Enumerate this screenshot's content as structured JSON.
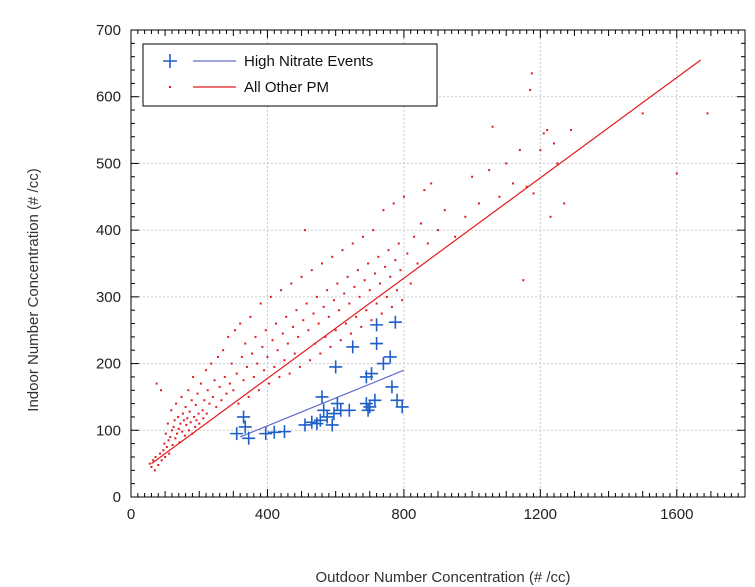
{
  "chart_data": {
    "type": "scatter",
    "xlabel": "Outdoor Number Concentration (# /cc)",
    "ylabel": "Indoor Number Concentration (# /cc)",
    "xlim": [
      0,
      1800
    ],
    "ylim": [
      0,
      700
    ],
    "x_ticks": [
      0,
      400,
      800,
      1200,
      1600
    ],
    "y_ticks": [
      0,
      100,
      200,
      300,
      400,
      500,
      600,
      700
    ],
    "grid": true,
    "legend_position": "top-left",
    "series": [
      {
        "name": "High Nitrate Events",
        "marker": "plus",
        "color": "#1f5fc8",
        "fit_color": "#6670cc",
        "fit_line": [
          [
            320,
            90
          ],
          [
            800,
            190
          ]
        ],
        "points": [
          [
            310,
            95
          ],
          [
            330,
            120
          ],
          [
            335,
            105
          ],
          [
            345,
            88
          ],
          [
            395,
            95
          ],
          [
            420,
            97
          ],
          [
            450,
            98
          ],
          [
            510,
            108
          ],
          [
            530,
            112
          ],
          [
            545,
            110
          ],
          [
            555,
            115
          ],
          [
            560,
            150
          ],
          [
            565,
            130
          ],
          [
            575,
            120
          ],
          [
            590,
            108
          ],
          [
            595,
            125
          ],
          [
            600,
            195
          ],
          [
            605,
            140
          ],
          [
            615,
            130
          ],
          [
            640,
            130
          ],
          [
            650,
            225
          ],
          [
            690,
            140
          ],
          [
            690,
            180
          ],
          [
            695,
            130
          ],
          [
            700,
            135
          ],
          [
            705,
            185
          ],
          [
            715,
            145
          ],
          [
            720,
            230
          ],
          [
            720,
            258
          ],
          [
            740,
            200
          ],
          [
            760,
            210
          ],
          [
            765,
            165
          ],
          [
            775,
            262
          ],
          [
            780,
            145
          ],
          [
            795,
            135
          ]
        ]
      },
      {
        "name": "All Other PM",
        "marker": "dot",
        "color": "#e31a1c",
        "fit_color": "#e31a1c",
        "fit_line": [
          [
            60,
            50
          ],
          [
            1670,
            655
          ]
        ],
        "points": [
          [
            55,
            50
          ],
          [
            60,
            45
          ],
          [
            65,
            55
          ],
          [
            70,
            40
          ],
          [
            72,
            60
          ],
          [
            75,
            170
          ],
          [
            80,
            48
          ],
          [
            85,
            65
          ],
          [
            88,
            160
          ],
          [
            90,
            55
          ],
          [
            95,
            70
          ],
          [
            98,
            80
          ],
          [
            100,
            60
          ],
          [
            102,
            95
          ],
          [
            105,
            75
          ],
          [
            108,
            110
          ],
          [
            110,
            85
          ],
          [
            112,
            65
          ],
          [
            115,
            90
          ],
          [
            118,
            130
          ],
          [
            120,
            100
          ],
          [
            122,
            78
          ],
          [
            125,
            105
          ],
          [
            128,
            115
          ],
          [
            130,
            88
          ],
          [
            132,
            140
          ],
          [
            135,
            95
          ],
          [
            138,
            120
          ],
          [
            140,
            102
          ],
          [
            142,
            82
          ],
          [
            145,
            110
          ],
          [
            148,
            150
          ],
          [
            150,
            98
          ],
          [
            152,
            125
          ],
          [
            155,
            115
          ],
          [
            158,
            92
          ],
          [
            160,
            135
          ],
          [
            162,
            108
          ],
          [
            165,
            118
          ],
          [
            168,
            160
          ],
          [
            170,
            100
          ],
          [
            172,
            128
          ],
          [
            175,
            112
          ],
          [
            178,
            145
          ],
          [
            180,
            95
          ],
          [
            182,
            180
          ],
          [
            185,
            120
          ],
          [
            188,
            105
          ],
          [
            190,
            138
          ],
          [
            192,
            115
          ],
          [
            195,
            155
          ],
          [
            198,
            125
          ],
          [
            200,
            110
          ],
          [
            205,
            170
          ],
          [
            210,
            130
          ],
          [
            212,
            118
          ],
          [
            215,
            145
          ],
          [
            220,
            190
          ],
          [
            222,
            125
          ],
          [
            225,
            160
          ],
          [
            230,
            140
          ],
          [
            235,
            200
          ],
          [
            240,
            150
          ],
          [
            245,
            175
          ],
          [
            250,
            135
          ],
          [
            255,
            210
          ],
          [
            260,
            165
          ],
          [
            265,
            145
          ],
          [
            270,
            220
          ],
          [
            275,
            180
          ],
          [
            280,
            155
          ],
          [
            285,
            240
          ],
          [
            290,
            170
          ],
          [
            295,
            200
          ],
          [
            300,
            160
          ],
          [
            305,
            250
          ],
          [
            310,
            185
          ],
          [
            315,
            140
          ],
          [
            320,
            260
          ],
          [
            325,
            210
          ],
          [
            330,
            175
          ],
          [
            335,
            230
          ],
          [
            340,
            195
          ],
          [
            345,
            150
          ],
          [
            350,
            270
          ],
          [
            355,
            215
          ],
          [
            360,
            180
          ],
          [
            365,
            240
          ],
          [
            370,
            200
          ],
          [
            375,
            160
          ],
          [
            380,
            290
          ],
          [
            385,
            225
          ],
          [
            390,
            190
          ],
          [
            395,
            250
          ],
          [
            400,
            210
          ],
          [
            405,
            170
          ],
          [
            410,
            300
          ],
          [
            415,
            235
          ],
          [
            420,
            195
          ],
          [
            425,
            260
          ],
          [
            430,
            220
          ],
          [
            435,
            180
          ],
          [
            440,
            310
          ],
          [
            445,
            245
          ],
          [
            450,
            205
          ],
          [
            455,
            270
          ],
          [
            460,
            230
          ],
          [
            465,
            185
          ],
          [
            470,
            320
          ],
          [
            475,
            255
          ],
          [
            480,
            215
          ],
          [
            485,
            280
          ],
          [
            490,
            240
          ],
          [
            495,
            195
          ],
          [
            500,
            330
          ],
          [
            505,
            265
          ],
          [
            510,
            400
          ],
          [
            515,
            290
          ],
          [
            520,
            250
          ],
          [
            525,
            205
          ],
          [
            530,
            340
          ],
          [
            535,
            275
          ],
          [
            540,
            230
          ],
          [
            545,
            300
          ],
          [
            550,
            260
          ],
          [
            555,
            215
          ],
          [
            560,
            350
          ],
          [
            565,
            285
          ],
          [
            570,
            240
          ],
          [
            575,
            310
          ],
          [
            580,
            270
          ],
          [
            585,
            225
          ],
          [
            590,
            360
          ],
          [
            595,
            295
          ],
          [
            600,
            250
          ],
          [
            605,
            320
          ],
          [
            610,
            280
          ],
          [
            615,
            235
          ],
          [
            620,
            370
          ],
          [
            625,
            305
          ],
          [
            630,
            260
          ],
          [
            635,
            330
          ],
          [
            640,
            290
          ],
          [
            645,
            245
          ],
          [
            650,
            380
          ],
          [
            655,
            315
          ],
          [
            660,
            270
          ],
          [
            665,
            340
          ],
          [
            670,
            300
          ],
          [
            675,
            255
          ],
          [
            680,
            390
          ],
          [
            685,
            325
          ],
          [
            690,
            280
          ],
          [
            695,
            350
          ],
          [
            700,
            310
          ],
          [
            705,
            265
          ],
          [
            710,
            400
          ],
          [
            715,
            335
          ],
          [
            720,
            290
          ],
          [
            725,
            360
          ],
          [
            730,
            320
          ],
          [
            735,
            275
          ],
          [
            740,
            430
          ],
          [
            745,
            345
          ],
          [
            750,
            300
          ],
          [
            755,
            370
          ],
          [
            760,
            330
          ],
          [
            765,
            285
          ],
          [
            770,
            440
          ],
          [
            775,
            355
          ],
          [
            780,
            310
          ],
          [
            785,
            380
          ],
          [
            790,
            340
          ],
          [
            795,
            295
          ],
          [
            800,
            450
          ],
          [
            810,
            365
          ],
          [
            820,
            320
          ],
          [
            830,
            390
          ],
          [
            840,
            350
          ],
          [
            850,
            410
          ],
          [
            860,
            460
          ],
          [
            870,
            380
          ],
          [
            880,
            470
          ],
          [
            900,
            400
          ],
          [
            920,
            430
          ],
          [
            950,
            390
          ],
          [
            980,
            420
          ],
          [
            1000,
            480
          ],
          [
            1020,
            440
          ],
          [
            1050,
            490
          ],
          [
            1060,
            555
          ],
          [
            1080,
            450
          ],
          [
            1100,
            500
          ],
          [
            1120,
            470
          ],
          [
            1140,
            520
          ],
          [
            1150,
            325
          ],
          [
            1160,
            465
          ],
          [
            1170,
            610
          ],
          [
            1175,
            635
          ],
          [
            1180,
            455
          ],
          [
            1200,
            520
          ],
          [
            1210,
            545
          ],
          [
            1220,
            550
          ],
          [
            1230,
            420
          ],
          [
            1240,
            530
          ],
          [
            1250,
            500
          ],
          [
            1270,
            440
          ],
          [
            1290,
            550
          ],
          [
            1500,
            575
          ],
          [
            1600,
            485
          ],
          [
            1690,
            575
          ]
        ]
      }
    ]
  }
}
